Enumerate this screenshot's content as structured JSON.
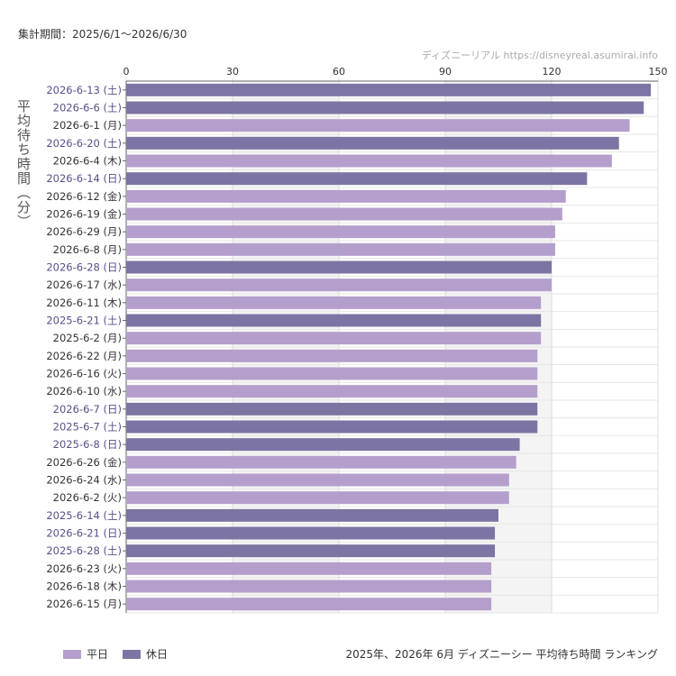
{
  "header": {
    "period": "集計期間：2025/6/1〜2026/6/30",
    "credit": "ディズニーリアル https://disneyreal.asumirai.info"
  },
  "footer": {
    "title": "2025年、2026年 6月 ディズニーシー 平均待ち時間 ランキング"
  },
  "colors": {
    "weekday": "#b49fcc",
    "holiday": "#7c75a3",
    "holiday_label": "#5a4f8a",
    "weekday_label": "#333333",
    "band": "#f4f4f4",
    "grid": "#dddddd"
  },
  "chart_data": {
    "type": "bar",
    "orientation": "horizontal",
    "ylabel": "平均待ち時間（分）",
    "xlim": [
      0,
      150
    ],
    "xticks": [
      0,
      30,
      60,
      90,
      120,
      150
    ],
    "legend": [
      {
        "label": "平日",
        "key": "weekday"
      },
      {
        "label": "休日",
        "key": "holiday"
      }
    ],
    "legend_position": "bottom-left",
    "categories": [
      "2026-6-13 (土)",
      "2026-6-6 (土)",
      "2026-6-1 (月)",
      "2026-6-20 (土)",
      "2026-6-4 (木)",
      "2026-6-14 (日)",
      "2026-6-12 (金)",
      "2026-6-19 (金)",
      "2026-6-29 (月)",
      "2026-6-8 (月)",
      "2026-6-28 (日)",
      "2026-6-17 (水)",
      "2026-6-11 (木)",
      "2025-6-21 (土)",
      "2025-6-2 (月)",
      "2026-6-22 (月)",
      "2026-6-16 (火)",
      "2026-6-10 (水)",
      "2026-6-7 (日)",
      "2025-6-7 (土)",
      "2025-6-8 (日)",
      "2026-6-26 (金)",
      "2026-6-24 (水)",
      "2026-6-2 (火)",
      "2025-6-14 (土)",
      "2026-6-21 (日)",
      "2025-6-28 (土)",
      "2026-6-23 (火)",
      "2026-6-18 (木)",
      "2026-6-15 (月)"
    ],
    "values": [
      148,
      146,
      142,
      139,
      137,
      130,
      124,
      123,
      121,
      121,
      120,
      120,
      117,
      117,
      117,
      116,
      116,
      116,
      116,
      116,
      111,
      110,
      108,
      108,
      105,
      104,
      104,
      103,
      103,
      103
    ],
    "day_type": [
      "holiday",
      "holiday",
      "weekday",
      "holiday",
      "weekday",
      "holiday",
      "weekday",
      "weekday",
      "weekday",
      "weekday",
      "holiday",
      "weekday",
      "weekday",
      "holiday",
      "weekday",
      "weekday",
      "weekday",
      "weekday",
      "holiday",
      "holiday",
      "holiday",
      "weekday",
      "weekday",
      "weekday",
      "holiday",
      "holiday",
      "holiday",
      "weekday",
      "weekday",
      "weekday"
    ]
  }
}
